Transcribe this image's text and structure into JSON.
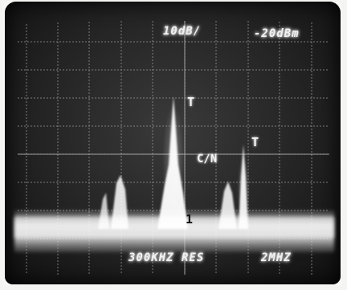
{
  "display": {
    "ref_scale": "10dB/",
    "ref_level": "-20dBm",
    "resolution_bw": "300KHZ RES",
    "span": "2MHZ",
    "marker_left": "T",
    "marker_right": "T",
    "cn_label": "C/N",
    "baseline_marker": "1"
  }
}
